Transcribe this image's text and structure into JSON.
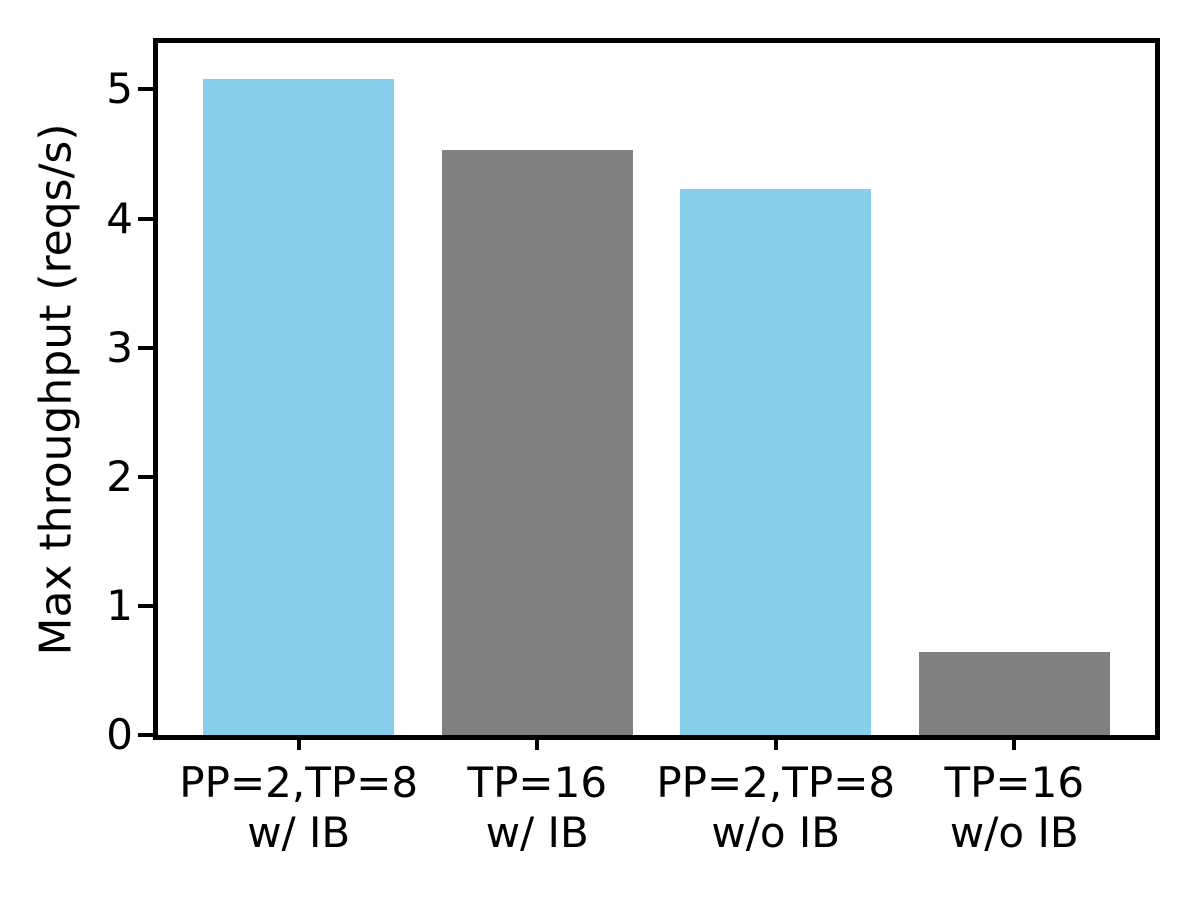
{
  "chart_data": {
    "type": "bar",
    "title": "",
    "xlabel": "",
    "ylabel": "Max throughput (reqs/s)",
    "categories": [
      {
        "id": "pp2-tp8-w-ib",
        "line1": "PP=2,TP=8",
        "line2": "w/ IB"
      },
      {
        "id": "tp16-w-ib",
        "line1": "TP=16",
        "line2": "w/ IB"
      },
      {
        "id": "pp2-tp8-wo-ib",
        "line1": "PP=2,TP=8",
        "line2": "w/o IB"
      },
      {
        "id": "tp16-wo-ib",
        "line1": "TP=16",
        "line2": "w/o IB"
      }
    ],
    "values": [
      5.08,
      4.53,
      4.23,
      0.64
    ],
    "bar_colors": [
      "#87ceeb",
      "#808080",
      "#87ceeb",
      "#808080"
    ],
    "yticks": [
      0,
      1,
      2,
      3,
      4,
      5
    ],
    "ylim": [
      0,
      5.36
    ],
    "xlim": [
      -0.59,
      3.59
    ],
    "bar_width_data_units": 0.8,
    "grid": false,
    "legend": "none",
    "axis_color": "#000000",
    "background_color": "#ffffff"
  }
}
